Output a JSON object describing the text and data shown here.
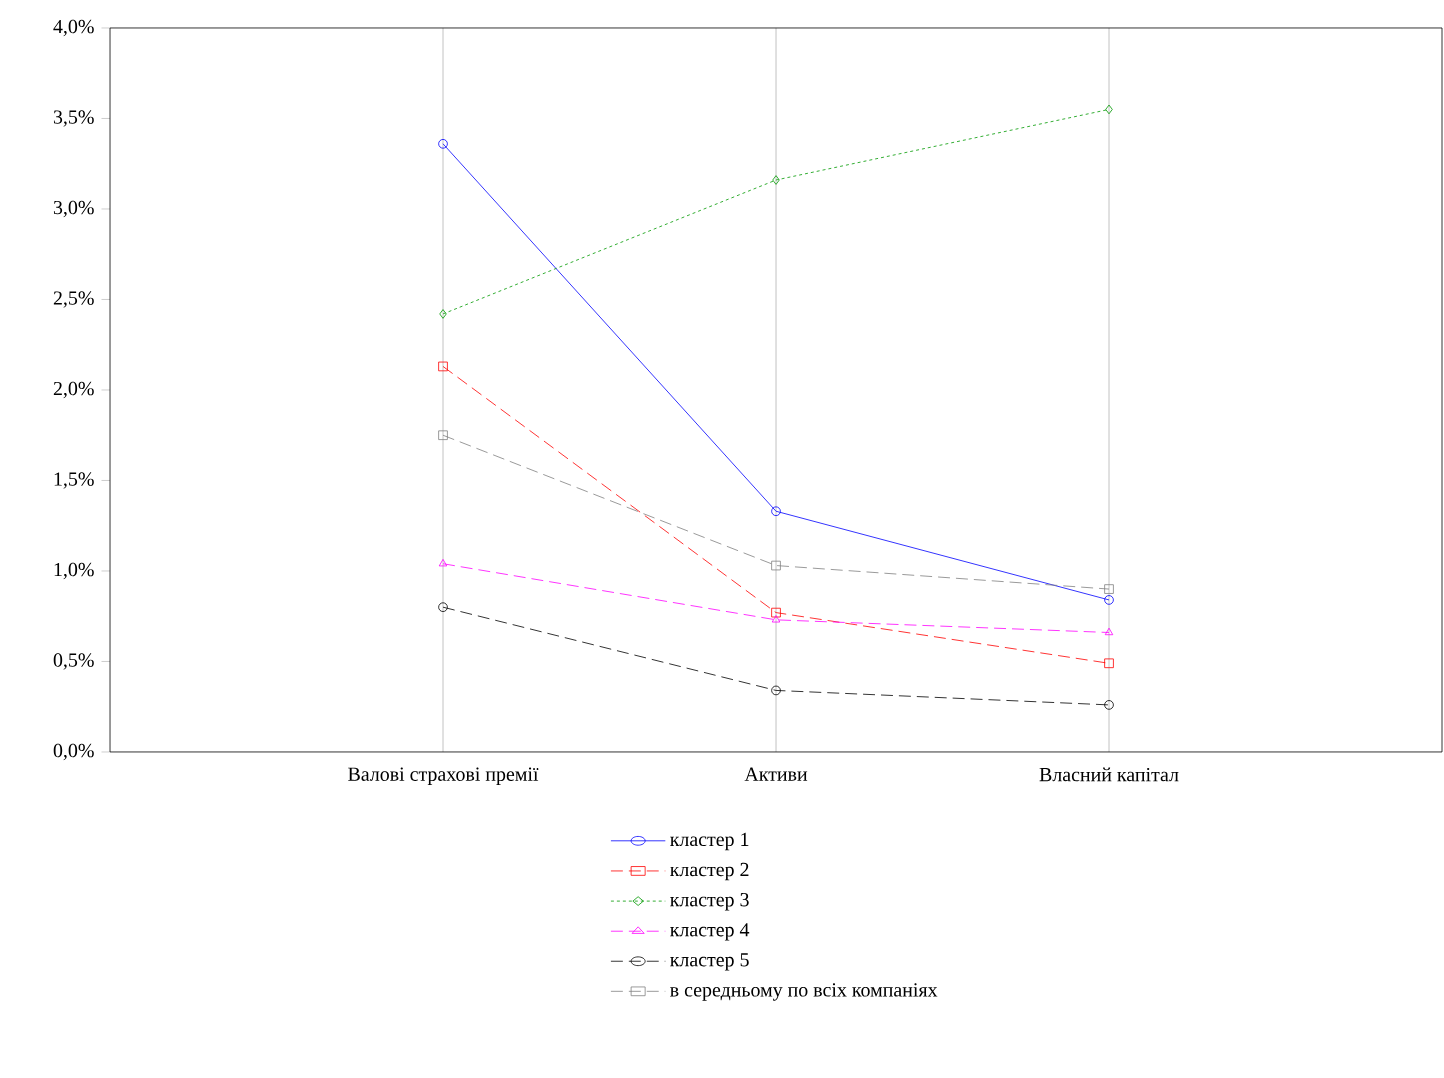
{
  "chart_data": {
    "type": "line",
    "categories": [
      "Валові страхові премії",
      "Активи",
      "Власний капітал"
    ],
    "ylim": [
      0,
      4
    ],
    "yticks": [
      {
        "value": 0,
        "label": "0,0%"
      },
      {
        "value": 0.5,
        "label": "0,5%"
      },
      {
        "value": 1,
        "label": "1,0%"
      },
      {
        "value": 1.5,
        "label": "1,5%"
      },
      {
        "value": 2,
        "label": "2,0%"
      },
      {
        "value": 2.5,
        "label": "2,5%"
      },
      {
        "value": 3,
        "label": "3,0%"
      },
      {
        "value": 3.5,
        "label": "3,5%"
      },
      {
        "value": 4,
        "label": "4,0%"
      }
    ],
    "grid": "x",
    "legend": "bottom",
    "series": [
      {
        "name": "кластер 1",
        "color": "#0000ff",
        "marker": "circle",
        "line_style": "solid",
        "values": [
          3.36,
          1.33,
          0.84
        ]
      },
      {
        "name": "кластер 2",
        "color": "#ff0000",
        "marker": "square",
        "line_style": "dashed",
        "values": [
          2.13,
          0.77,
          0.49
        ]
      },
      {
        "name": "кластер 3",
        "color": "#009900",
        "marker": "diamond",
        "line_style": "dotted",
        "values": [
          2.42,
          3.16,
          3.55
        ]
      },
      {
        "name": "кластер 4",
        "color": "#ff00ff",
        "marker": "triangle",
        "line_style": "dashed",
        "values": [
          1.04,
          0.73,
          0.66
        ]
      },
      {
        "name": "кластер 5",
        "color": "#000000",
        "marker": "circle",
        "line_style": "dashed",
        "values": [
          0.8,
          0.34,
          0.26
        ]
      },
      {
        "name": "в середньому по всіх компаніях",
        "color": "#808080",
        "marker": "square",
        "line_style": "dashed",
        "values": [
          1.75,
          1.03,
          0.9
        ]
      }
    ]
  }
}
